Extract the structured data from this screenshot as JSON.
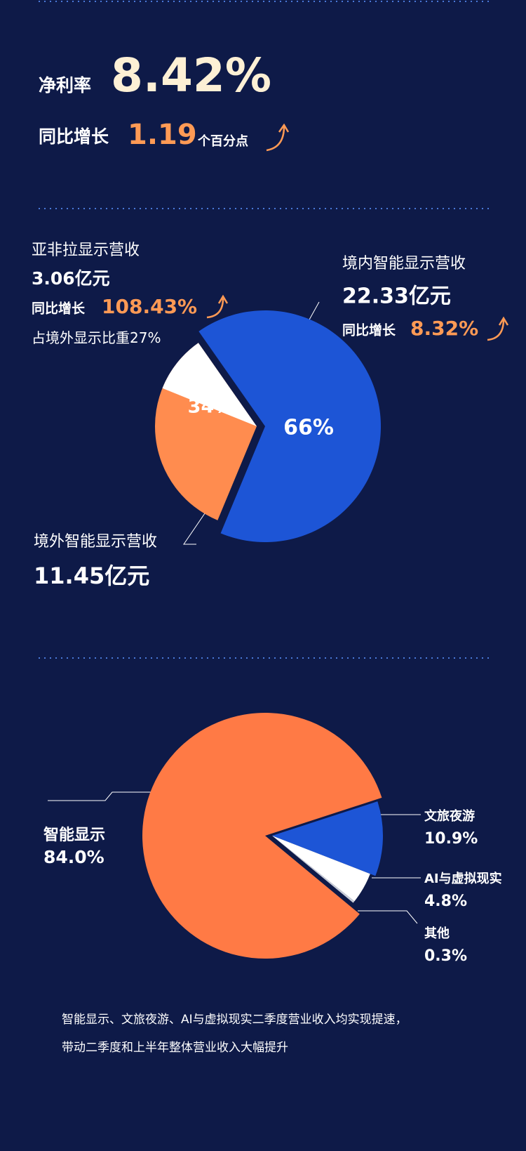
{
  "header": {
    "net_margin_label": "净利率",
    "net_margin": "8.42%",
    "growth_label": "同比增长",
    "growth": "1.19",
    "growth_unit": "个百分点"
  },
  "chart_data": [
    {
      "type": "pie",
      "categories": [
        "境内智能显示营收",
        "境外智能显示营收"
      ],
      "values": [
        66,
        34
      ],
      "value_labels": [
        "66%",
        "34%"
      ],
      "colors": [
        "#1d55d6",
        "#ff8c4f"
      ],
      "revenues": [
        "22.33亿元",
        "11.45亿元"
      ],
      "growth_label": "同比增长",
      "growths": [
        "8.32%",
        null
      ],
      "sub_slice": {
        "name": "亚非拉显示营收",
        "revenue": "3.06亿元",
        "growth": "108.43%",
        "share_label": "占境外显示比重",
        "value": 27,
        "value_label": "27%",
        "color": "#ffffff"
      }
    },
    {
      "type": "pie",
      "categories": [
        "智能显示",
        "文旅夜游",
        "AI与虚拟现实",
        "其他"
      ],
      "values": [
        84.0,
        10.9,
        4.8,
        0.3
      ],
      "value_labels": [
        "84.0%",
        "10.9%",
        "4.8%",
        "0.3%"
      ],
      "colors": [
        "#ff7a45",
        "#1d55d6",
        "#ffffff",
        "#c9cdd8"
      ]
    }
  ],
  "footnote": [
    "智能显示、文旅夜游、AI与虚拟现实二季度营业收入均实现提速，",
    "带动二季度和上半年整体营业收入大幅提升"
  ]
}
